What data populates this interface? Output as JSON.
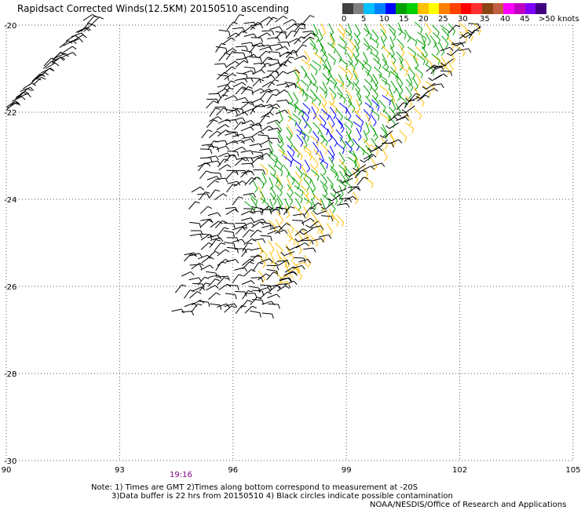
{
  "title": "Rapidsact Corrected Winds(12.5KM) 20150510 ascending",
  "legend": {
    "labels": [
      "0",
      "5",
      "10",
      "15",
      "20",
      "25",
      "30",
      "35",
      "40",
      "45",
      ">50 knots"
    ],
    "colors": [
      "#404040",
      "#808080",
      "#00c0ff",
      "#0080ff",
      "#0000ff",
      "#00a000",
      "#00d000",
      "#ffc000",
      "#ffff00",
      "#ff8000",
      "#ff4000",
      "#ff0000",
      "#ff3030",
      "#8b4513",
      "#c06040",
      "#ff00ff",
      "#c000c0",
      "#8000ff",
      "#400080"
    ]
  },
  "map": {
    "lon_ticks": [
      "90",
      "93",
      "96",
      "99",
      "102",
      "105"
    ],
    "lat_ticks": [
      "-20",
      "-22",
      "-24",
      "-26",
      "-28",
      "-30"
    ],
    "lon_range": [
      90,
      105
    ],
    "lat_range": [
      -30,
      -20
    ],
    "gridlines": "dotted"
  },
  "pass_time": "19:16",
  "notes": [
    "Note: 1) Times are GMT 2)Times along bottom correspond to measurement at -20S",
    "3)Data buffer is 22 hrs from 20150510 4) Black circles indicate possible contamination",
    "NOAA/NESDIS/Office of Research and Applications"
  ],
  "wind_colors": {
    "calm": "#000000",
    "moderate": "#00a000",
    "fresh": "#0000ff",
    "strong": "#ffc000"
  }
}
